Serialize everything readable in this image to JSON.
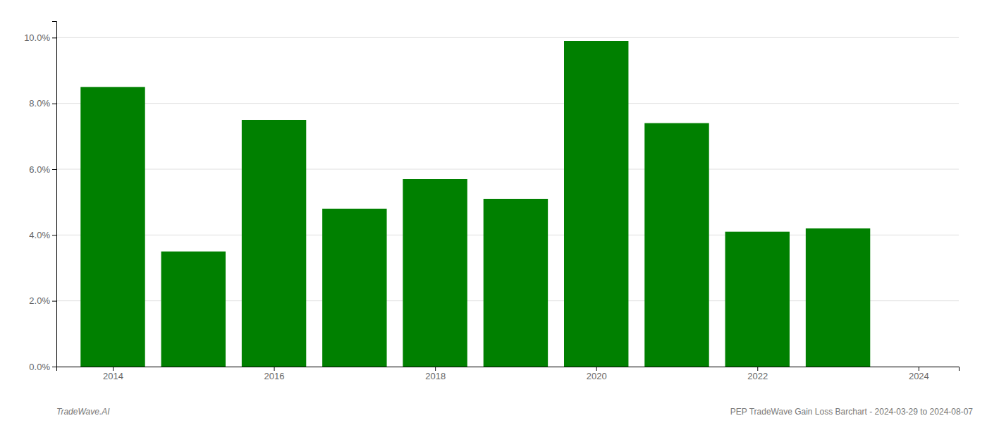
{
  "chart_data": {
    "type": "bar",
    "x": [
      2014,
      2015,
      2016,
      2017,
      2018,
      2019,
      2020,
      2021,
      2022,
      2023
    ],
    "values": [
      0.085,
      0.035,
      0.075,
      0.048,
      0.057,
      0.051,
      0.099,
      0.074,
      0.041,
      0.042
    ],
    "color": "#008000",
    "xlim": [
      2013.3,
      2024.5
    ],
    "xticks": [
      2014,
      2016,
      2018,
      2020,
      2022,
      2024
    ],
    "ylim": [
      0,
      0.105
    ],
    "yticks": [
      {
        "value": 0.0,
        "label": "0.0%"
      },
      {
        "value": 0.02,
        "label": "2.0%"
      },
      {
        "value": 0.04,
        "label": "4.0%"
      },
      {
        "value": 0.06,
        "label": "6.0%"
      },
      {
        "value": 0.08,
        "label": "8.0%"
      },
      {
        "value": 0.1,
        "label": "10.0%"
      }
    ],
    "grid": true,
    "annotations": [
      "TradeWave.AI",
      "PEP TradeWave Gain Loss Barchart - 2024-03-29 to 2024-08-07"
    ]
  }
}
